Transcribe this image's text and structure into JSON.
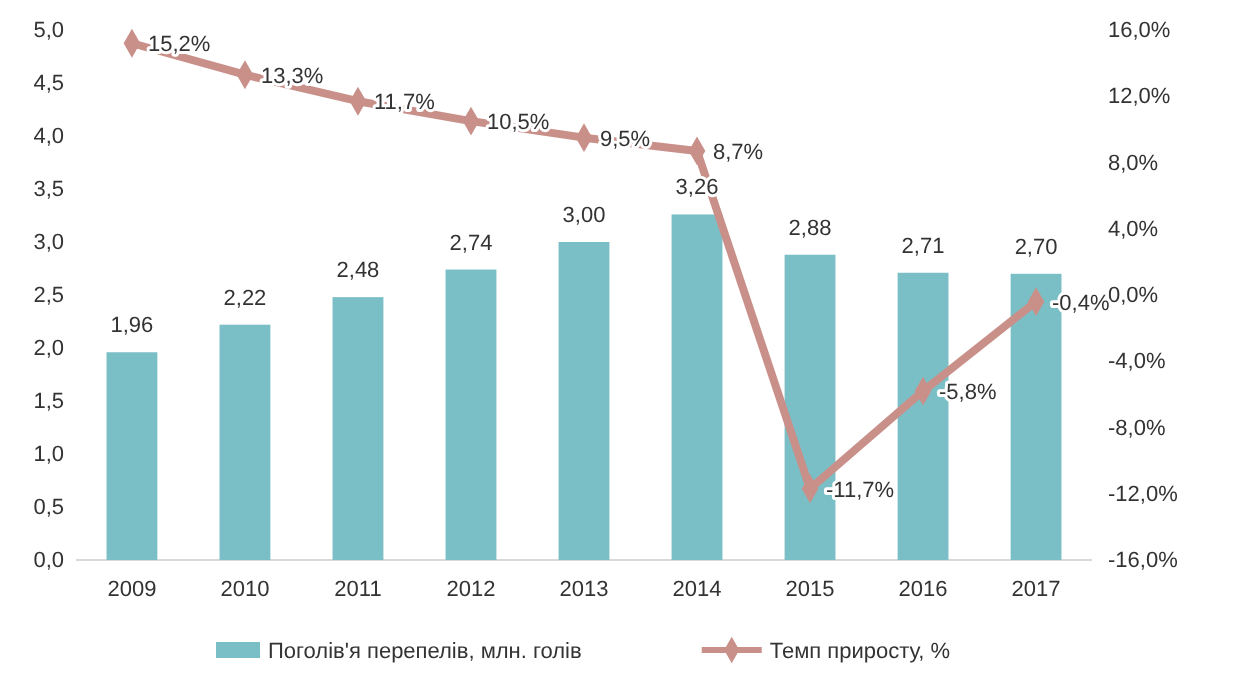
{
  "chart_data": {
    "type": "bar",
    "categories": [
      "2009",
      "2010",
      "2011",
      "2012",
      "2013",
      "2014",
      "2015",
      "2016",
      "2017"
    ],
    "series": [
      {
        "name": "Поголів'я перепелів, млн. голів",
        "color": "#7bbfc6",
        "values": [
          1.96,
          2.22,
          2.48,
          2.74,
          3.0,
          3.26,
          2.88,
          2.71,
          2.7
        ],
        "value_labels": [
          "1,96",
          "2,22",
          "2,48",
          "2,74",
          "3,00",
          "3,26",
          "2,88",
          "2,71",
          "2,70"
        ]
      },
      {
        "name": "Темп приросту, %",
        "type": "line",
        "axis": "y2",
        "color": "#c9908a",
        "marker": "diamond",
        "values": [
          15.2,
          13.3,
          11.7,
          10.5,
          9.5,
          8.7,
          -11.7,
          -5.8,
          -0.4
        ],
        "value_labels": [
          "15,2%",
          "13,3%",
          "11,7%",
          "10,5%",
          "9,5%",
          "8,7%",
          "-11,7%",
          "-5,8%",
          "-0,4%"
        ]
      }
    ],
    "ylim": [
      0,
      5
    ],
    "yticks": [
      {
        "value": 0,
        "label": "0,0"
      },
      {
        "value": 0.5,
        "label": "0,5"
      },
      {
        "value": 1,
        "label": "1,0"
      },
      {
        "value": 1.5,
        "label": "1,5"
      },
      {
        "value": 2,
        "label": "2,0"
      },
      {
        "value": 2.5,
        "label": "2,5"
      },
      {
        "value": 3,
        "label": "3,0"
      },
      {
        "value": 3.5,
        "label": "3,5"
      },
      {
        "value": 4,
        "label": "4,0"
      },
      {
        "value": 4.5,
        "label": "4,5"
      },
      {
        "value": 5,
        "label": "5,0"
      }
    ],
    "y2lim": [
      -16,
      16
    ],
    "y2ticks": [
      {
        "value": -16,
        "label": "-16,0%"
      },
      {
        "value": -12,
        "label": "-12,0%"
      },
      {
        "value": -8,
        "label": "-8,0%"
      },
      {
        "value": -4,
        "label": "-4,0%"
      },
      {
        "value": 0,
        "label": "0,0%"
      },
      {
        "value": 4,
        "label": "4,0%"
      },
      {
        "value": 8,
        "label": "8,0%"
      },
      {
        "value": 12,
        "label": "12,0%"
      },
      {
        "value": 16,
        "label": "16,0%"
      }
    ],
    "legend": "bottom",
    "grid": false,
    "line_style": "solid"
  }
}
